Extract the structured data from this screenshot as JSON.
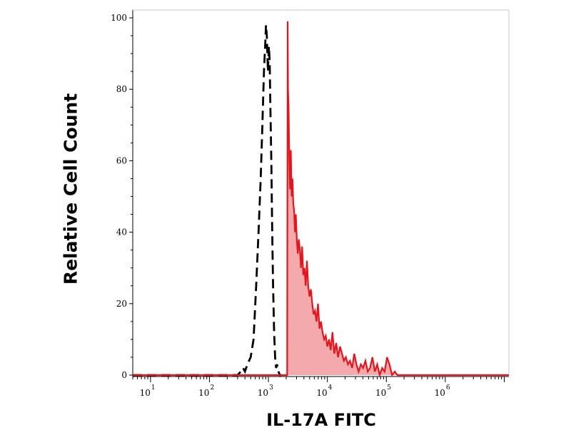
{
  "chart_data": {
    "type": "area",
    "x_scale": "log",
    "xlim": [
      5,
      12000000
    ],
    "ylim": [
      0,
      100
    ],
    "xlabel": "IL-17A FITC",
    "ylabel": "Relative Cell Count",
    "y_ticks": [
      "0",
      "20",
      "40",
      "60",
      "80",
      "100"
    ],
    "x_ticks": [
      {
        "base": "10",
        "exp": "1"
      },
      {
        "base": "10",
        "exp": "2"
      },
      {
        "base": "10",
        "exp": "3"
      },
      {
        "base": "10",
        "exp": "4"
      },
      {
        "base": "10",
        "exp": "5"
      },
      {
        "base": "10",
        "exp": "6"
      }
    ],
    "series": [
      {
        "style": "dashed",
        "color": "#000000",
        "fill": "none",
        "x": [
          5,
          300,
          340,
          370,
          400,
          440,
          500,
          560,
          620,
          680,
          740,
          790,
          840,
          880,
          910,
          940,
          980,
          1020,
          1050,
          1080,
          1120,
          1160,
          1200,
          1250,
          1300,
          1350,
          1400,
          1480,
          1560,
          1650
        ],
        "y": [
          0,
          0,
          1,
          2,
          1,
          3,
          5,
          10,
          25,
          40,
          55,
          70,
          85,
          92,
          98,
          95,
          85,
          92,
          88,
          75,
          60,
          40,
          25,
          12,
          5,
          2,
          3,
          1,
          0,
          0
        ]
      },
      {
        "style": "solid",
        "color": "#e8141b",
        "fill": "#f4a9ac",
        "x": [
          5,
          2000,
          2080,
          2120,
          2150,
          2200,
          2260,
          2330,
          2400,
          2480,
          2560,
          2640,
          2730,
          2820,
          2920,
          3030,
          3150,
          3280,
          3420,
          3570,
          3730,
          3900,
          4090,
          4290,
          4500,
          4730,
          4980,
          5250,
          5540,
          5850,
          6180,
          6540,
          6930,
          7350,
          7800,
          8290,
          8820,
          9390,
          10000,
          10700,
          11400,
          12200,
          13100,
          14100,
          15200,
          16400,
          17700,
          19100,
          20600,
          22300,
          24200,
          26300,
          28600,
          31100,
          33900,
          37000,
          40400,
          44200,
          48400,
          53000,
          58100,
          63800,
          70100,
          77100,
          84900,
          93500,
          103000,
          113000,
          125000,
          139000,
          154000,
          12000000
        ],
        "y": [
          0,
          0,
          0,
          99,
          80,
          75,
          60,
          52,
          63,
          50,
          55,
          48,
          46,
          40,
          45,
          38,
          34,
          38,
          35,
          30,
          36,
          28,
          30,
          25,
          32,
          25,
          22,
          24,
          20,
          17,
          18,
          15,
          20,
          13,
          15,
          12,
          10,
          11,
          8,
          10,
          7,
          12,
          6,
          9,
          5,
          8,
          6,
          4,
          5,
          3,
          4,
          2,
          6,
          3,
          1,
          3,
          2,
          4,
          1,
          2,
          5,
          1,
          3,
          0,
          2,
          1,
          5,
          3,
          0,
          1,
          0,
          0
        ]
      }
    ]
  }
}
